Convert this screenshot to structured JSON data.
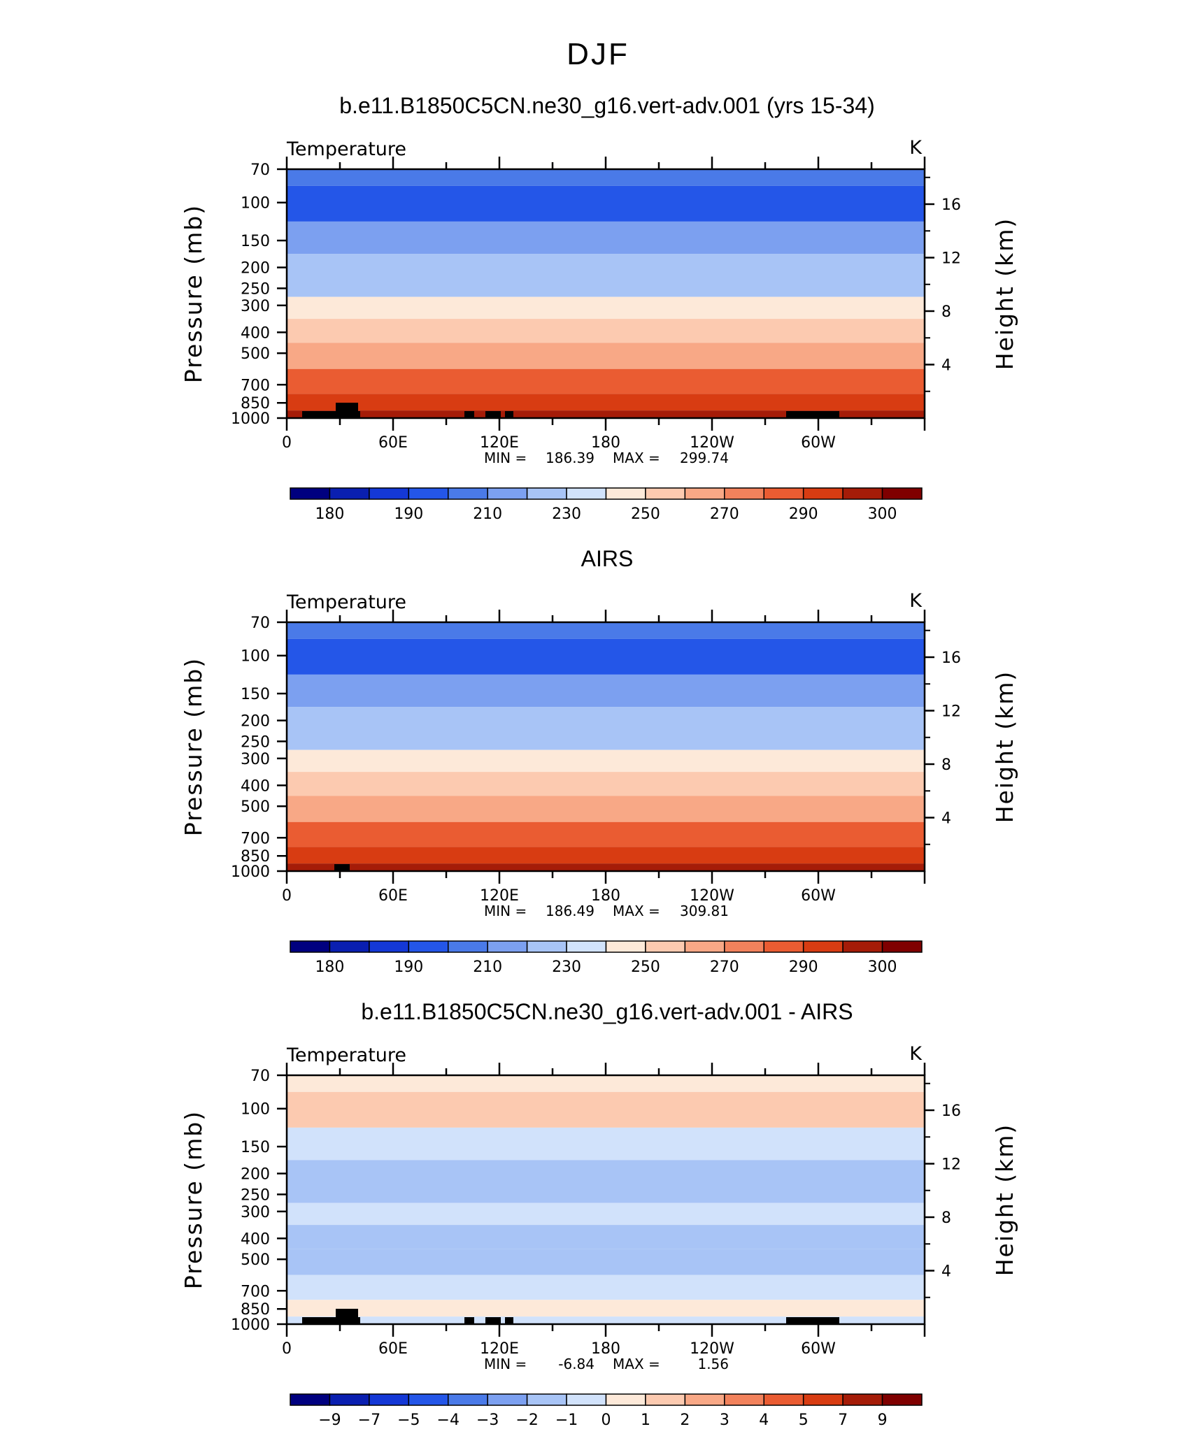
{
  "figure_title": "DJF",
  "chart_data": [
    {
      "type": "heatmap",
      "title": "b.e11.B1850C5CN.ne30_g16.vert-adv.001 (yrs 15-34)",
      "left_label": "Temperature",
      "units": "K",
      "ylabel": "Pressure (mb)",
      "ylabel_right": "Height (km)",
      "x_ticks": [
        "0",
        "60E",
        "120E",
        "180",
        "120W",
        "60W"
      ],
      "y_ticks": [
        "70",
        "100",
        "150",
        "200",
        "250",
        "300",
        "400",
        "500",
        "700",
        "850",
        "1000"
      ],
      "y_ticks_right": [
        "16",
        "12",
        "8",
        "4"
      ],
      "min_label": "MIN =",
      "min_value": "186.39",
      "max_label": "MAX =",
      "max_value": "299.74",
      "colorbar_labels": [
        "180",
        "190",
        "210",
        "230",
        "250",
        "270",
        "290",
        "300"
      ],
      "colorbar_colors": [
        "#00007f",
        "#0a1fb0",
        "#1438d6",
        "#2456e8",
        "#4a7ae8",
        "#7ca0f0",
        "#a8c4f6",
        "#d1e2fb",
        "#fde9d9",
        "#fccab0",
        "#f8a886",
        "#f2825c",
        "#ea5c32",
        "#d83c12",
        "#a51c08",
        "#7f0000"
      ],
      "layers": [
        {
          "p": 70,
          "value": 195
        },
        {
          "p": 100,
          "value": 192
        },
        {
          "p": 150,
          "value": 205
        },
        {
          "p": 200,
          "value": 215
        },
        {
          "p": 250,
          "value": 222
        },
        {
          "p": 300,
          "value": 235
        },
        {
          "p": 400,
          "value": 250
        },
        {
          "p": 500,
          "value": 262
        },
        {
          "p": 700,
          "value": 278
        },
        {
          "p": 850,
          "value": 287
        },
        {
          "p": 1000,
          "value": 294
        }
      ]
    },
    {
      "type": "heatmap",
      "title": "AIRS",
      "left_label": "Temperature",
      "units": "K",
      "ylabel": "Pressure (mb)",
      "ylabel_right": "Height (km)",
      "x_ticks": [
        "0",
        "60E",
        "120E",
        "180",
        "120W",
        "60W"
      ],
      "y_ticks": [
        "70",
        "100",
        "150",
        "200",
        "250",
        "300",
        "400",
        "500",
        "700",
        "850",
        "1000"
      ],
      "y_ticks_right": [
        "16",
        "12",
        "8",
        "4"
      ],
      "min_label": "MIN =",
      "min_value": "186.49",
      "max_label": "MAX =",
      "max_value": "309.81",
      "colorbar_labels": [
        "180",
        "190",
        "210",
        "230",
        "250",
        "270",
        "290",
        "300"
      ],
      "colorbar_colors": [
        "#00007f",
        "#0a1fb0",
        "#1438d6",
        "#2456e8",
        "#4a7ae8",
        "#7ca0f0",
        "#a8c4f6",
        "#d1e2fb",
        "#fde9d9",
        "#fccab0",
        "#f8a886",
        "#f2825c",
        "#ea5c32",
        "#d83c12",
        "#a51c08",
        "#7f0000"
      ],
      "layers": [
        {
          "p": 70,
          "value": 195
        },
        {
          "p": 100,
          "value": 192
        },
        {
          "p": 150,
          "value": 205
        },
        {
          "p": 200,
          "value": 215
        },
        {
          "p": 250,
          "value": 222
        },
        {
          "p": 300,
          "value": 238
        },
        {
          "p": 400,
          "value": 252
        },
        {
          "p": 500,
          "value": 264
        },
        {
          "p": 700,
          "value": 280
        },
        {
          "p": 850,
          "value": 292
        },
        {
          "p": 1000,
          "value": 300
        }
      ]
    },
    {
      "type": "heatmap",
      "title": "b.e11.B1850C5CN.ne30_g16.vert-adv.001 - AIRS",
      "left_label": "Temperature",
      "units": "K",
      "ylabel": "Pressure (mb)",
      "ylabel_right": "Height (km)",
      "x_ticks": [
        "0",
        "60E",
        "120E",
        "180",
        "120W",
        "60W"
      ],
      "y_ticks": [
        "70",
        "100",
        "150",
        "200",
        "250",
        "300",
        "400",
        "500",
        "700",
        "850",
        "1000"
      ],
      "y_ticks_right": [
        "16",
        "12",
        "8",
        "4"
      ],
      "min_label": "MIN =",
      "min_value": "-6.84",
      "max_label": "MAX =",
      "max_value": "1.56",
      "colorbar_labels": [
        "−9",
        "−7",
        "−5",
        "−4",
        "−3",
        "−2",
        "−1",
        "0",
        "1",
        "2",
        "3",
        "4",
        "5",
        "7",
        "9"
      ],
      "colorbar_colors": [
        "#00007f",
        "#0a1fb0",
        "#1438d6",
        "#2456e8",
        "#4a7ae8",
        "#7ca0f0",
        "#a8c4f6",
        "#d1e2fb",
        "#fde9d9",
        "#fccab0",
        "#f8a886",
        "#f2825c",
        "#ea5c32",
        "#d83c12",
        "#a51c08",
        "#7f0000"
      ],
      "layers": [
        {
          "p": 70,
          "value": -0.5
        },
        {
          "p": 100,
          "value": 0.5
        },
        {
          "p": 150,
          "value": -1.5
        },
        {
          "p": 200,
          "value": -2.5
        },
        {
          "p": 250,
          "value": -2.0
        },
        {
          "p": 300,
          "value": -1.5
        },
        {
          "p": 400,
          "value": -2.0
        },
        {
          "p": 500,
          "value": -2.5
        },
        {
          "p": 700,
          "value": -1.5
        },
        {
          "p": 850,
          "value": -0.5
        },
        {
          "p": 1000,
          "value": -1.0
        }
      ]
    }
  ]
}
